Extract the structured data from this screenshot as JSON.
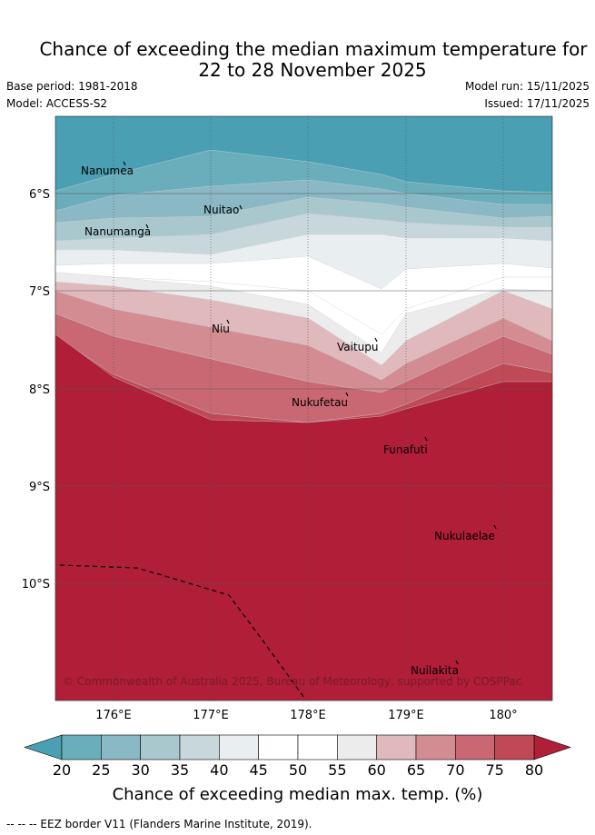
{
  "title_line1": "Chance of exceeding the median maximum temperature for",
  "title_line2": "22 to 28 November 2025",
  "base_period": "Base period: 1981-2018",
  "model": "Model: ACCESS-S2",
  "model_run": "Model run: 15/11/2025",
  "issued": "Issued: 17/11/2025",
  "copyright": "© Commonwealth of Australia 2025, Bureau of Meteorology, supported by COSPPac",
  "lon_labels": [
    "176°E",
    "177°E",
    "178°E",
    "179°E",
    "180°"
  ],
  "lat_labels": [
    "6°S",
    "7°S",
    "8°S",
    "9°S",
    "10°S"
  ],
  "islands": [
    "Nanumea",
    "Nuitao",
    "Nanumanga",
    "Niu",
    "Vaitupu",
    "Nukufetau",
    "Funafuti",
    "Nukulaelae",
    "Nuilakita"
  ],
  "colorbar": {
    "ticks": [
      "20",
      "25",
      "30",
      "35",
      "40",
      "45",
      "50",
      "55",
      "60",
      "65",
      "70",
      "75",
      "80"
    ],
    "label": "Chance of exceeding median max. temp. (%)",
    "colors": [
      "#4aa0b2",
      "#6aaebb",
      "#8ab8c4",
      "#a8c8cd",
      "#c8d7dc",
      "#e9eff1",
      "#ffffff",
      "#ffffff",
      "#edecec",
      "#e0b9bd",
      "#d48c93",
      "#c96872",
      "#bf4a55",
      "#b01e38"
    ]
  },
  "footnote": "-- -- -- EEZ border V11 (Flanders Marine Institute, 2019)."
}
